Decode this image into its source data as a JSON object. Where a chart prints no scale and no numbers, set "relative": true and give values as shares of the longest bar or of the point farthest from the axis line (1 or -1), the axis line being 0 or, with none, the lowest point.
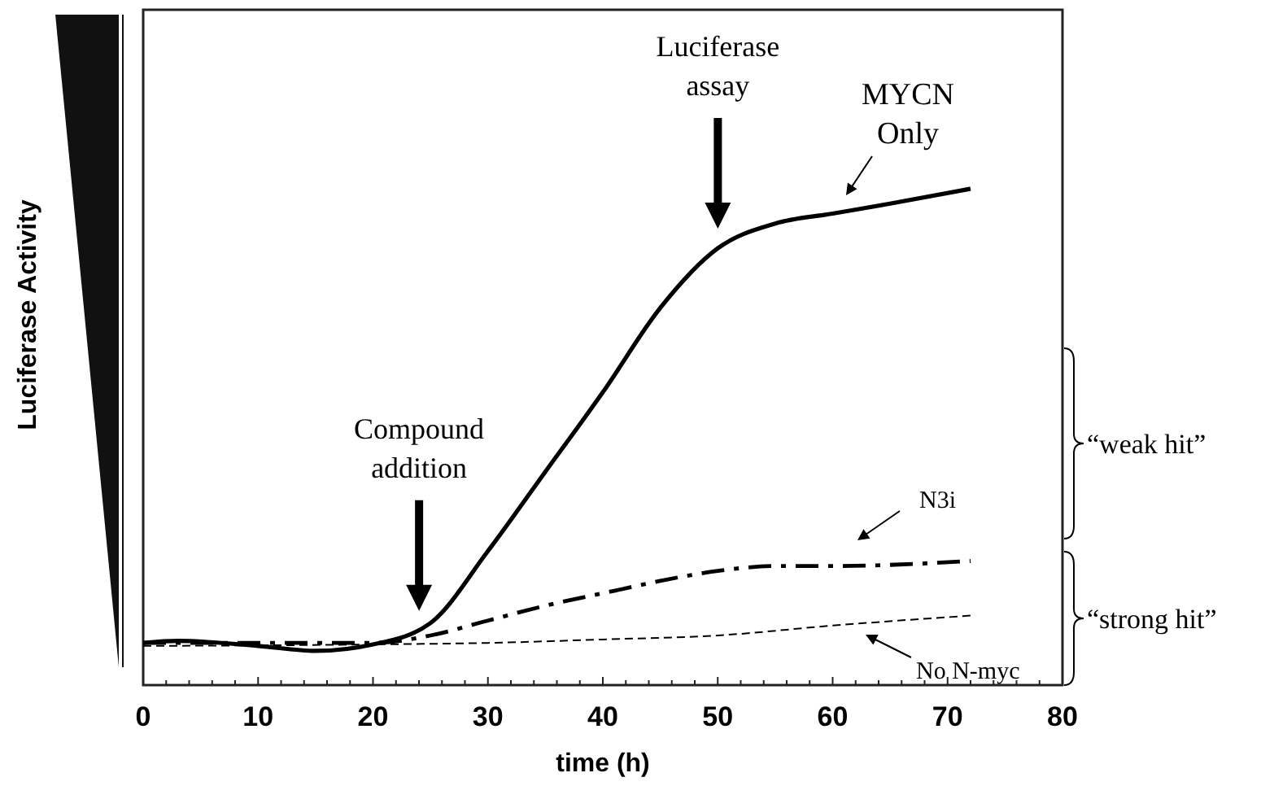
{
  "chart_data": {
    "type": "line",
    "relative": true,
    "xlabel": "time (h)",
    "ylabel": "Luciferase Activity",
    "xlim": [
      0,
      80
    ],
    "xticks": [
      0,
      {
        "value": 2,
        "label": null
      },
      {
        "value": 4,
        "label": null
      },
      {
        "value": 6,
        "label": null
      },
      {
        "value": 8,
        "label": null
      },
      10,
      {
        "value": 12,
        "label": null
      },
      {
        "value": 14,
        "label": null
      },
      {
        "value": 16,
        "label": null
      },
      {
        "value": 18,
        "label": null
      },
      20,
      {
        "value": 22,
        "label": null
      },
      {
        "value": 24,
        "label": null
      },
      {
        "value": 26,
        "label": null
      },
      {
        "value": 28,
        "label": null
      },
      30,
      {
        "value": 32,
        "label": null
      },
      {
        "value": 34,
        "label": null
      },
      {
        "value": 36,
        "label": null
      },
      {
        "value": 38,
        "label": null
      },
      40,
      {
        "value": 42,
        "label": null
      },
      {
        "value": 44,
        "label": null
      },
      {
        "value": 46,
        "label": null
      },
      {
        "value": 48,
        "label": null
      },
      50,
      {
        "value": 52,
        "label": null
      },
      {
        "value": 54,
        "label": null
      },
      {
        "value": 56,
        "label": null
      },
      {
        "value": 58,
        "label": null
      },
      60,
      {
        "value": 62,
        "label": null
      },
      {
        "value": 64,
        "label": null
      },
      {
        "value": 66,
        "label": null
      },
      {
        "value": 68,
        "label": null
      },
      70,
      {
        "value": 72,
        "label": null
      },
      {
        "value": 74,
        "label": null
      },
      {
        "value": 76,
        "label": null
      },
      {
        "value": 78,
        "label": null
      },
      80
    ],
    "grid": false,
    "legend": false,
    "marker": "none",
    "series": [
      {
        "name": "MYCN Only",
        "color": "#000000",
        "line_style": "solid",
        "x": [
          0,
          3,
          10,
          15,
          20,
          25,
          30,
          35,
          40,
          45,
          50,
          55,
          60,
          65,
          72
        ],
        "values": [
          0.085,
          0.089,
          0.079,
          0.069,
          0.082,
          0.125,
          0.27,
          0.43,
          0.59,
          0.76,
          0.88,
          0.93,
          0.95,
          0.97,
          1
        ]
      },
      {
        "name": "N3i",
        "color": "#000000",
        "line_style": "dashdot",
        "x": [
          0,
          10,
          20,
          25,
          30,
          35,
          41,
          45,
          50,
          55,
          60,
          72
        ],
        "values": [
          0.085,
          0.085,
          0.085,
          0.1,
          0.13,
          0.16,
          0.19,
          0.21,
          0.23,
          0.24,
          0.24,
          0.25
        ]
      },
      {
        "name": "No N-myc",
        "color": "#000000",
        "line_style": "dashed",
        "x": [
          0,
          10,
          20,
          30,
          40,
          50,
          60,
          72
        ],
        "values": [
          0.079,
          0.08,
          0.082,
          0.085,
          0.092,
          0.1,
          0.12,
          0.14
        ]
      }
    ],
    "annotations": [
      "Compound addition",
      "Luciferase assay",
      "“weak hit”",
      "“strong hit”"
    ]
  }
}
